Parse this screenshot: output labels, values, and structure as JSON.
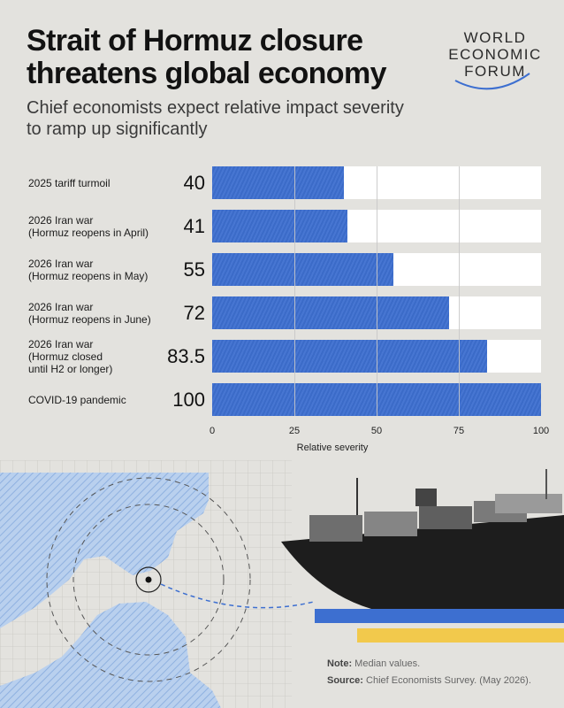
{
  "header": {
    "title": "Strait of Hormuz closure threatens global economy",
    "subtitle": "Chief economists expect relative impact severity to ramp up significantly"
  },
  "logo": {
    "line1": "WORLD",
    "line2": "ECONOMIC",
    "line3": "FORUM"
  },
  "chart_data": {
    "type": "bar",
    "orientation": "horizontal",
    "categories": [
      "2025 tariff turmoil",
      "2026 Iran war\n(Hormuz reopens in April)",
      "2026 Iran war\n(Hormuz reopens in May)",
      "2026 Iran war\n(Hormuz reopens in June)",
      "2026 Iran war\n(Hormuz closed\nuntil H2 or longer)",
      "COVID-19 pandemic"
    ],
    "values": [
      40,
      41,
      55,
      72,
      83.5,
      100
    ],
    "value_labels": [
      "40",
      "41",
      "55",
      "72",
      "83.5",
      "100"
    ],
    "title": "",
    "xlabel": "Relative severity",
    "ylabel": "",
    "xlim": [
      0,
      100
    ],
    "xticks": [
      "0",
      "25",
      "50",
      "75",
      "100"
    ],
    "grid": true,
    "bar_color": "#3d6fd0",
    "track_color": "#ffffff"
  },
  "footer": {
    "note_label": "Note:",
    "note_text": "Median values.",
    "source_label": "Source:",
    "source_text": "Chief Economists Survey. (May 2026)."
  },
  "colors": {
    "background": "#e3e2de",
    "accent_blue": "#3d6fd0",
    "accent_yellow": "#f2c94c"
  }
}
